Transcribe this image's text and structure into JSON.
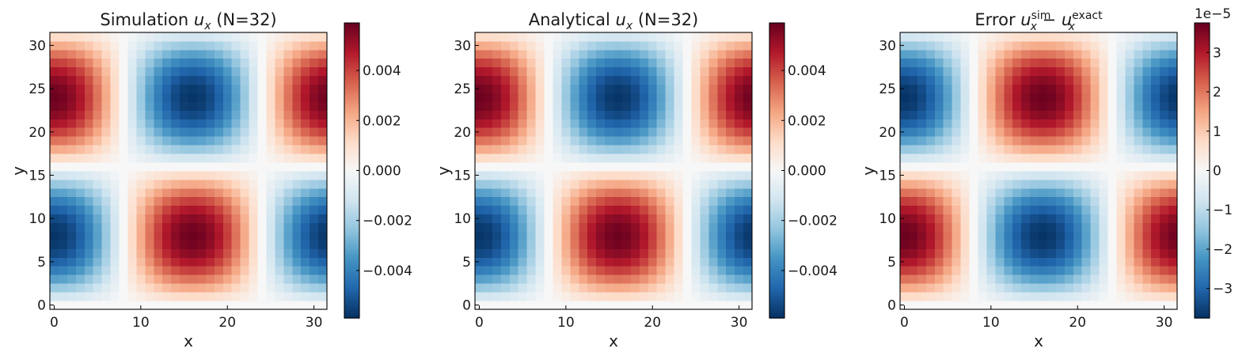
{
  "chart_data": [
    {
      "type": "heatmap",
      "title_prefix": "Simulation ",
      "title_var": "u",
      "title_sub": "x",
      "title_sup": "",
      "title_mid": "",
      "title_var2": "",
      "title_sub2": "",
      "title_sup2": "",
      "title_suffix": " (N=32)",
      "xlabel": "x",
      "ylabel": "y",
      "grid_n": 32,
      "xlim": [
        -0.5,
        31.5
      ],
      "ylim": [
        -0.5,
        31.5
      ],
      "xticks": [
        "0",
        "10",
        "20",
        "30"
      ],
      "yticks": [
        "0",
        "5",
        "10",
        "15",
        "20",
        "25",
        "30"
      ],
      "field": "u_x(x,y) = A·cos(2πx/32)·sin(2πy/32)",
      "amplitude": 0.0058,
      "sign": -1,
      "colormap": "RdBu_r",
      "colorbar": {
        "vmin": -0.0059,
        "vmax": 0.0059,
        "ticks": [
          0.004,
          0.002,
          0.0,
          -0.002,
          -0.004
        ],
        "tick_labels": [
          "0.004",
          "0.002",
          "0.000",
          "−0.002",
          "−0.004"
        ],
        "offset_label": ""
      }
    },
    {
      "type": "heatmap",
      "title_prefix": "Analytical ",
      "title_var": "u",
      "title_sub": "x",
      "title_sup": "",
      "title_mid": "",
      "title_var2": "",
      "title_sub2": "",
      "title_sup2": "",
      "title_suffix": " (N=32)",
      "xlabel": "x",
      "ylabel": "y",
      "grid_n": 32,
      "xlim": [
        -0.5,
        31.5
      ],
      "ylim": [
        -0.5,
        31.5
      ],
      "xticks": [
        "0",
        "10",
        "20",
        "30"
      ],
      "yticks": [
        "0",
        "5",
        "10",
        "15",
        "20",
        "25",
        "30"
      ],
      "field": "u_x(x,y) = A·cos(2πx/32)·sin(2πy/32)",
      "amplitude": 0.0058,
      "sign": -1,
      "colormap": "RdBu_r",
      "colorbar": {
        "vmin": -0.0059,
        "vmax": 0.0059,
        "ticks": [
          0.004,
          0.002,
          0.0,
          -0.002,
          -0.004
        ],
        "tick_labels": [
          "0.004",
          "0.002",
          "0.000",
          "−0.002",
          "−0.004"
        ],
        "offset_label": ""
      }
    },
    {
      "type": "heatmap",
      "title_prefix": "Error ",
      "title_var": "u",
      "title_sub": "x",
      "title_sup": "sim",
      "title_mid": " − ",
      "title_var2": "u",
      "title_sub2": "x",
      "title_sup2": "exact",
      "title_suffix": "",
      "xlabel": "x",
      "ylabel": "y",
      "grid_n": 32,
      "xlim": [
        -0.5,
        31.5
      ],
      "ylim": [
        -0.5,
        31.5
      ],
      "xticks": [
        "0",
        "10",
        "20",
        "30"
      ],
      "yticks": [
        "0",
        "5",
        "10",
        "15",
        "20",
        "25",
        "30"
      ],
      "field": "error = A·cos(2πx/32)·sin(2πy/32)",
      "amplitude": 3.7,
      "sign": 1,
      "colormap": "RdBu_r",
      "colorbar": {
        "vmin": -3.75,
        "vmax": 3.75,
        "ticks": [
          3,
          2,
          1,
          0,
          -1,
          -2,
          -3
        ],
        "tick_labels": [
          "3",
          "2",
          "1",
          "0",
          "−1",
          "−2",
          "−3"
        ],
        "offset_label": "1e−5"
      }
    }
  ]
}
